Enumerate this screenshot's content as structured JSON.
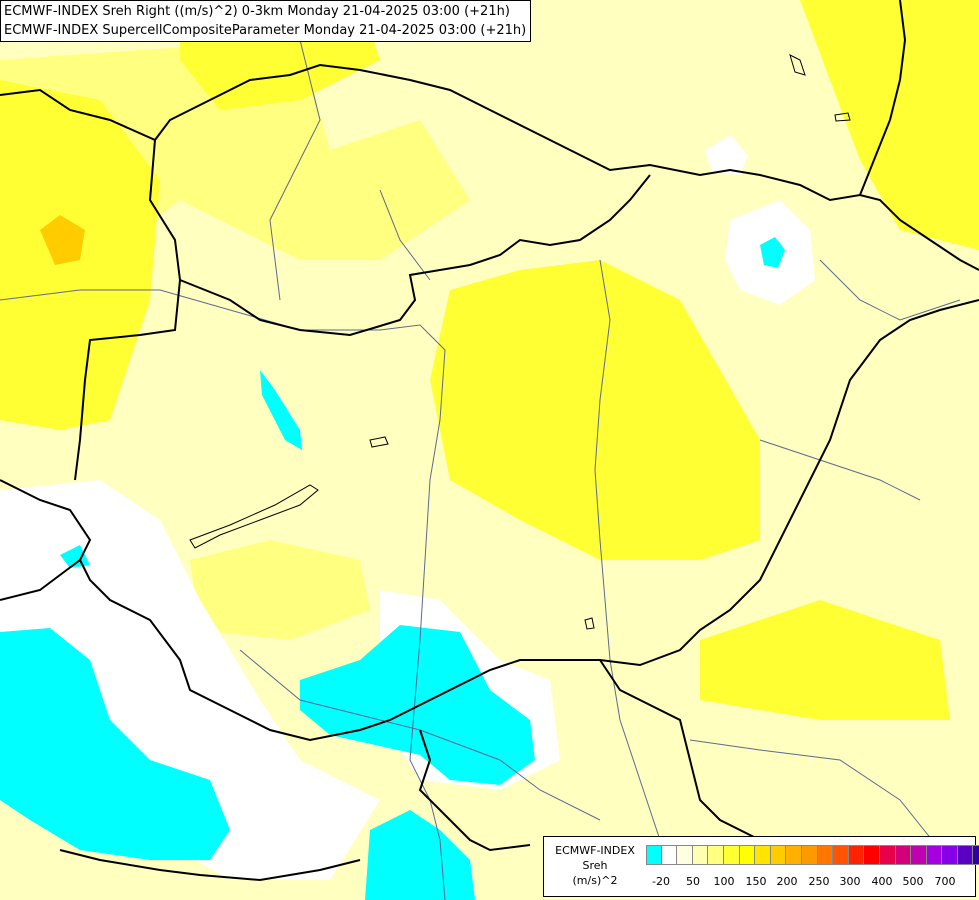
{
  "map": {
    "fill_colors": {
      "background": "#ffffc0",
      "light_yellow": "#ffff80",
      "yellow": "#ffff33",
      "bright_yellow": "#ffee00",
      "orange_yellow": "#ffcc00",
      "white": "#ffffff",
      "cyan": "#00ffff"
    }
  },
  "header": {
    "line1": "ECMWF-INDEX Sreh Right ((m/s)^2) 0-3km Monday 21-04-2025 03:00 (+21h)",
    "line2": "ECMWF-INDEX SupercellCompositeParameter Monday 21-04-2025 03:00 (+21h)"
  },
  "legend": {
    "title_line1": "ECMWF-INDEX",
    "title_line2": "Sreh",
    "title_line3": "(m/s)^2",
    "swatch_colors": [
      "#00ffff",
      "#ffffff",
      "#ffffe0",
      "#ffffb0",
      "#ffff80",
      "#ffff33",
      "#ffff00",
      "#ffe400",
      "#ffcc00",
      "#ffb000",
      "#ff9900",
      "#ff7700",
      "#ff5500",
      "#ff2200",
      "#ff0000",
      "#e8004a",
      "#d4007a",
      "#c000b0",
      "#a400e0",
      "#8800e8",
      "#5a00c0",
      "#3000a0",
      "#000080"
    ],
    "tick_labels": [
      "-20",
      "50",
      "100",
      "150",
      "200",
      "250",
      "300",
      "400",
      "500",
      "700"
    ]
  }
}
